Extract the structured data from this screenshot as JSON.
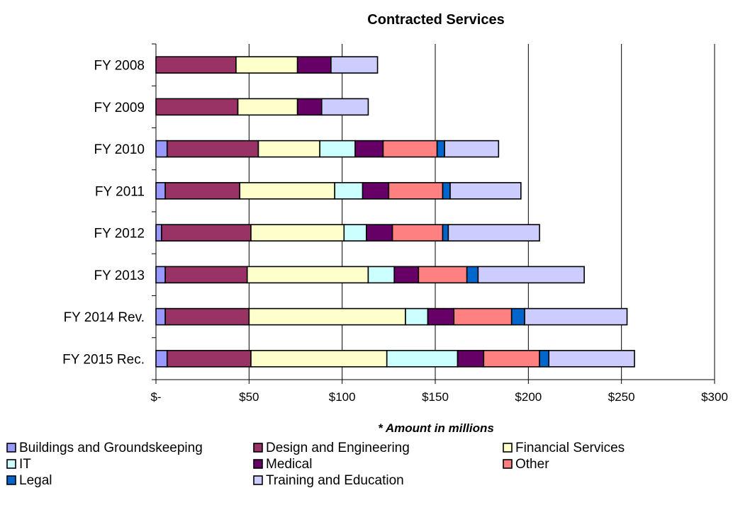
{
  "chart_data": {
    "type": "bar",
    "orientation": "horizontal",
    "stacked": true,
    "title": "Contracted Services",
    "note": "* Amount in millions",
    "categories": [
      "FY 2008",
      "FY 2009",
      "FY 2010",
      "FY 2011",
      "FY 2012",
      "FY 2013",
      "FY 2014 Rev.",
      "FY 2015 Rec."
    ],
    "x_ticks": [
      "$-",
      "$50",
      "$100",
      "$150",
      "$200",
      "$250",
      "$300"
    ],
    "xlim": [
      0,
      300
    ],
    "grid": "vertical",
    "legend_position": "bottom",
    "series": [
      {
        "name": "Buildings and Groundskeeping",
        "color": "#9999ff",
        "values": [
          0,
          0,
          6,
          5,
          3,
          5,
          5,
          6
        ]
      },
      {
        "name": "Design and  Engineering",
        "color": "#993366",
        "values": [
          43,
          44,
          49,
          40,
          48,
          44,
          45,
          45
        ]
      },
      {
        "name": "Financial Services",
        "color": "#ffffcc",
        "values": [
          33,
          32,
          33,
          51,
          50,
          65,
          84,
          73
        ]
      },
      {
        "name": "IT",
        "color": "#ccffff",
        "values": [
          0,
          0,
          19,
          15,
          12,
          14,
          12,
          38
        ]
      },
      {
        "name": "Medical",
        "color": "#660066",
        "values": [
          18,
          13,
          15,
          14,
          14,
          13,
          14,
          14
        ]
      },
      {
        "name": "Other",
        "color": "#ff8080",
        "values": [
          0,
          0,
          29,
          29,
          27,
          26,
          31,
          30
        ]
      },
      {
        "name": "Legal",
        "color": "#0066cc",
        "values": [
          0,
          0,
          4,
          4,
          3,
          6,
          7,
          5
        ]
      },
      {
        "name": "Training and Education",
        "color": "#ccccff",
        "values": [
          25,
          25,
          29,
          38,
          49,
          57,
          55,
          46
        ]
      }
    ]
  }
}
